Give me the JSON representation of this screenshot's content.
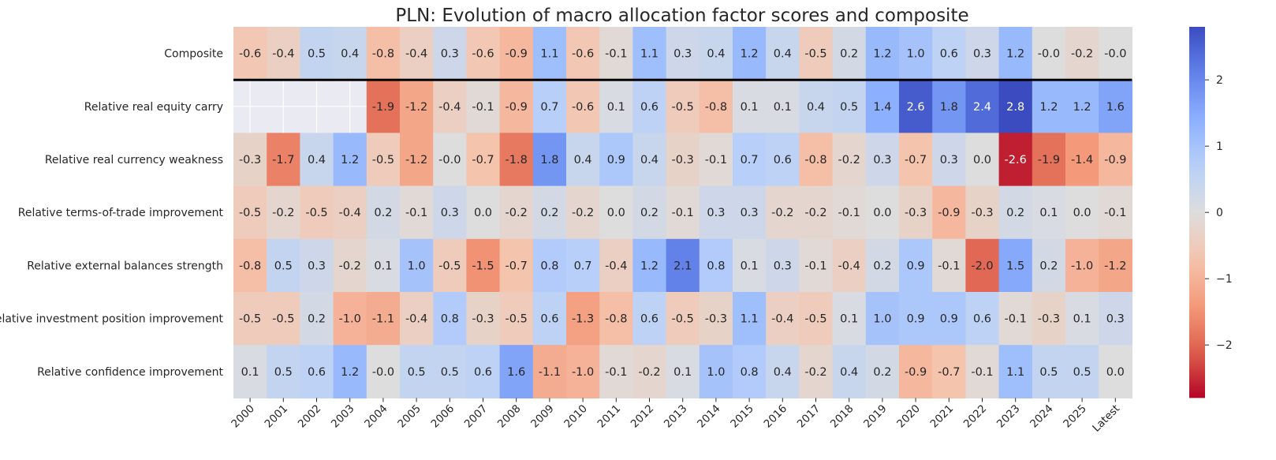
{
  "chart_data": {
    "type": "heatmap",
    "title": "PLN: Evolution of macro allocation factor scores and composite",
    "columns": [
      "2000",
      "2001",
      "2002",
      "2003",
      "2004",
      "2005",
      "2006",
      "2007",
      "2008",
      "2009",
      "2010",
      "2011",
      "2012",
      "2013",
      "2014",
      "2015",
      "2016",
      "2017",
      "2018",
      "2019",
      "2020",
      "2021",
      "2022",
      "2023",
      "2024",
      "2025",
      "Latest"
    ],
    "rows": [
      "Composite",
      "Relative real equity carry",
      "Relative real currency weakness",
      "Relative terms-of-trade improvement",
      "Relative external balances strength",
      "Relative investment position improvement",
      "Relative confidence improvement"
    ],
    "values": [
      [
        -0.6,
        -0.4,
        0.5,
        0.4,
        -0.8,
        -0.4,
        0.3,
        -0.6,
        -0.9,
        1.1,
        -0.6,
        -0.1,
        1.1,
        0.3,
        0.4,
        1.2,
        0.4,
        -0.5,
        0.2,
        1.2,
        1.0,
        0.6,
        0.3,
        1.2,
        -0.0,
        -0.2,
        -0.0
      ],
      [
        null,
        null,
        null,
        null,
        -1.9,
        -1.2,
        -0.4,
        -0.1,
        -0.9,
        0.7,
        -0.6,
        0.1,
        0.6,
        -0.5,
        -0.8,
        0.1,
        0.1,
        0.4,
        0.5,
        1.4,
        2.6,
        1.8,
        2.4,
        2.8,
        1.2,
        1.2,
        1.6
      ],
      [
        -0.3,
        -1.7,
        0.4,
        1.2,
        -0.5,
        -1.2,
        -0.0,
        -0.7,
        -1.8,
        1.8,
        0.4,
        0.9,
        0.4,
        -0.3,
        -0.1,
        0.7,
        0.6,
        -0.8,
        -0.2,
        0.3,
        -0.7,
        0.3,
        0.0,
        -2.6,
        -1.9,
        -1.4,
        -0.9
      ],
      [
        -0.5,
        -0.2,
        -0.5,
        -0.4,
        0.2,
        -0.1,
        0.3,
        0.0,
        -0.2,
        0.2,
        -0.2,
        0.0,
        0.2,
        -0.1,
        0.3,
        0.3,
        -0.2,
        -0.2,
        -0.1,
        0.0,
        -0.3,
        -0.9,
        -0.3,
        0.2,
        0.1,
        0.0,
        -0.1
      ],
      [
        -0.8,
        0.5,
        0.3,
        -0.2,
        0.1,
        1.0,
        -0.5,
        -1.5,
        -0.7,
        0.8,
        0.7,
        -0.4,
        1.2,
        2.1,
        0.8,
        0.1,
        0.3,
        -0.1,
        -0.4,
        0.2,
        0.9,
        -0.1,
        -2.0,
        1.5,
        0.2,
        -1.0,
        -1.2
      ],
      [
        -0.5,
        -0.5,
        0.2,
        -1.0,
        -1.1,
        -0.4,
        0.8,
        -0.3,
        -0.5,
        0.6,
        -1.3,
        -0.8,
        0.6,
        -0.5,
        -0.3,
        1.1,
        -0.4,
        -0.5,
        0.1,
        1.0,
        0.9,
        0.9,
        0.6,
        -0.1,
        -0.3,
        0.1,
        0.3
      ],
      [
        0.1,
        0.5,
        0.6,
        1.2,
        -0.0,
        0.5,
        0.5,
        0.6,
        1.6,
        -1.1,
        -1.0,
        -0.1,
        -0.2,
        0.1,
        1.0,
        0.8,
        0.4,
        -0.2,
        0.4,
        0.2,
        -0.9,
        -0.7,
        -0.1,
        1.1,
        0.5,
        0.5,
        0.0
      ]
    ],
    "vmin": -2.8,
    "vmax": 2.8,
    "colormap": "coolwarm_r",
    "missing_color": "#eaeaf2",
    "separator_after_row": 0,
    "colorbar": {
      "ticks": [
        -2,
        -1,
        0,
        1,
        2
      ],
      "tick_labels": [
        "−2",
        "−1",
        "0",
        "1",
        "2"
      ]
    },
    "xlabel": "",
    "ylabel": ""
  }
}
